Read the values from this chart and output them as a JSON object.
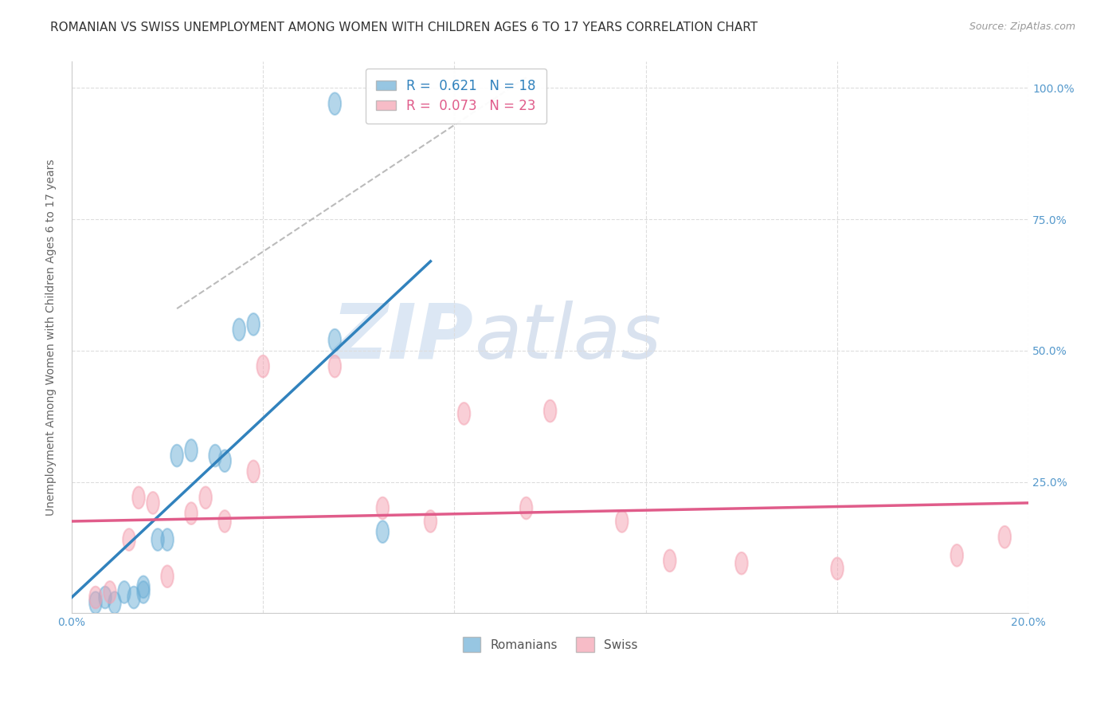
{
  "title": "ROMANIAN VS SWISS UNEMPLOYMENT AMONG WOMEN WITH CHILDREN AGES 6 TO 17 YEARS CORRELATION CHART",
  "source": "Source: ZipAtlas.com",
  "xlabel": "",
  "ylabel": "Unemployment Among Women with Children Ages 6 to 17 years",
  "xlim": [
    0.0,
    0.2
  ],
  "ylim": [
    0.0,
    1.05
  ],
  "xticks": [
    0.0,
    0.04,
    0.08,
    0.12,
    0.16,
    0.2
  ],
  "xticklabels": [
    "0.0%",
    "",
    "",
    "",
    "",
    "20.0%"
  ],
  "yticks": [
    0.0,
    0.25,
    0.5,
    0.75,
    1.0
  ],
  "yticklabels_right": [
    "",
    "25.0%",
    "50.0%",
    "75.0%",
    "100.0%"
  ],
  "title_fontsize": 11,
  "watermark_zip": "ZIP",
  "watermark_atlas": "atlas",
  "romanian_R": 0.621,
  "romanian_N": 18,
  "swiss_R": 0.073,
  "swiss_N": 23,
  "romanian_color": "#6baed6",
  "swiss_color": "#f4a0b0",
  "romanian_line_color": "#3182bd",
  "swiss_line_color": "#e05c8a",
  "ref_line_color": "#bbbbbb",
  "romanian_x": [
    0.005,
    0.007,
    0.009,
    0.011,
    0.013,
    0.015,
    0.015,
    0.018,
    0.02,
    0.022,
    0.025,
    0.03,
    0.032,
    0.035,
    0.038,
    0.055,
    0.065,
    0.055
  ],
  "romanian_y": [
    0.02,
    0.03,
    0.02,
    0.04,
    0.03,
    0.04,
    0.05,
    0.14,
    0.14,
    0.3,
    0.31,
    0.3,
    0.29,
    0.54,
    0.55,
    0.52,
    0.155,
    0.97
  ],
  "swiss_x": [
    0.005,
    0.008,
    0.012,
    0.014,
    0.017,
    0.02,
    0.025,
    0.028,
    0.032,
    0.038,
    0.04,
    0.055,
    0.065,
    0.075,
    0.082,
    0.095,
    0.1,
    0.115,
    0.125,
    0.14,
    0.16,
    0.185,
    0.195
  ],
  "swiss_y": [
    0.03,
    0.04,
    0.14,
    0.22,
    0.21,
    0.07,
    0.19,
    0.22,
    0.175,
    0.27,
    0.47,
    0.47,
    0.2,
    0.175,
    0.38,
    0.2,
    0.385,
    0.175,
    0.1,
    0.095,
    0.085,
    0.11,
    0.145
  ],
  "rom_line_x": [
    0.0,
    0.075
  ],
  "rom_line_y": [
    0.03,
    0.67
  ],
  "swiss_line_x": [
    0.0,
    0.2
  ],
  "swiss_line_y": [
    0.175,
    0.21
  ],
  "ref_line_x": [
    0.022,
    0.095
  ],
  "ref_line_y": [
    0.58,
    1.02
  ],
  "grid_color": "#dddddd",
  "background_color": "#ffffff",
  "ylabel_fontsize": 10,
  "tick_fontsize": 10,
  "legend_fontsize": 12
}
